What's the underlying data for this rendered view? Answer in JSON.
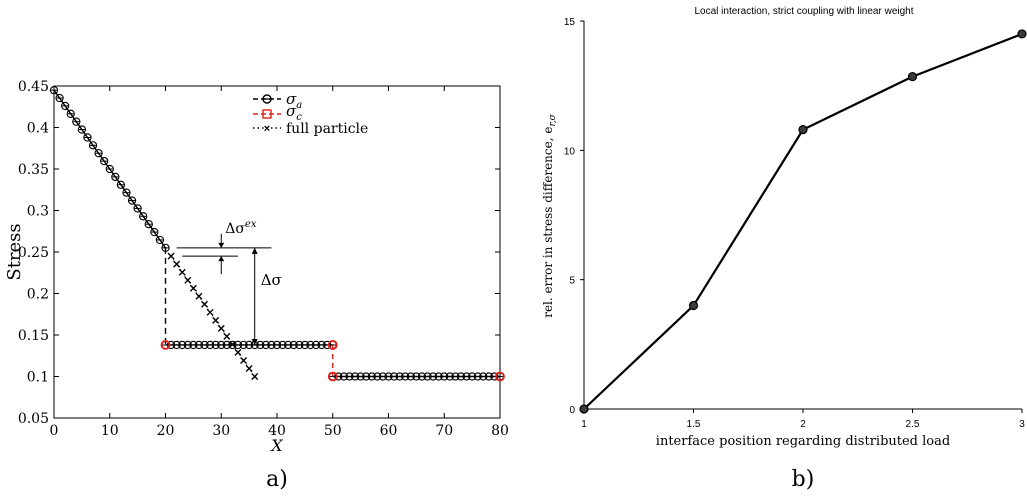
{
  "chart_data": [
    {
      "type": "line",
      "panel_label": "a)",
      "title": "",
      "xlabel": "X",
      "ylabel": "Stress",
      "xlim": [
        0,
        80
      ],
      "ylim": [
        0.05,
        0.45
      ],
      "x_ticks": [
        "0",
        "10",
        "20",
        "30",
        "40",
        "50",
        "60",
        "70",
        "80"
      ],
      "y_ticks": [
        "0.05",
        "0.1",
        "0.15",
        "0.2",
        "0.25",
        "0.3",
        "0.35",
        "0.4",
        "0.45"
      ],
      "legend_placement": "top-center",
      "grid": false,
      "series": [
        {
          "name": "σa",
          "legend_sub": "a",
          "color": "#000000",
          "marker": "circle-slash",
          "line": "dashed",
          "segments": [
            {
              "x_start": 0,
              "x_end": 20,
              "y_start": 0.445,
              "y_end": 0.255,
              "step": 1
            },
            {
              "x_start": 20,
              "x_end": 50,
              "y_start": 0.138,
              "y_end": 0.138,
              "step": 1
            },
            {
              "x_start": 50,
              "x_end": 80,
              "y_start": 0.1,
              "y_end": 0.1,
              "step": 1
            }
          ],
          "jumps": [
            [
              20,
              0.255,
              0.138
            ]
          ]
        },
        {
          "name": "σc",
          "legend_sub": "c",
          "color": "#e0201b",
          "marker": "square",
          "line": "dashed",
          "points": [
            [
              20,
              0.138
            ],
            [
              50,
              0.138
            ],
            [
              50,
              0.1
            ],
            [
              80,
              0.1
            ]
          ],
          "jumps": [
            [
              50,
              0.138,
              0.1
            ]
          ]
        },
        {
          "name": "full particle",
          "color": "#000000",
          "marker": "x",
          "line": "dotted",
          "segments": [
            {
              "x_start": 21,
              "x_end": 36,
              "y_start": 0.245,
              "y_end": 0.1,
              "step": 1
            }
          ]
        }
      ],
      "annotations": [
        {
          "label": "Δσ",
          "sup": "ex",
          "x": 30,
          "y_top": 0.255,
          "y_bottom": 0.245
        },
        {
          "label": "Δσ",
          "sup": "",
          "x": 36,
          "y_top": 0.255,
          "y_bottom": 0.138
        }
      ]
    },
    {
      "type": "line",
      "panel_label": "b)",
      "title": "Local interaction, strict coupling with linear weight",
      "xlabel": "interface position regarding distributed load",
      "ylabel": "rel. error in stress difference, e",
      "ylabel_sub": "r,σ",
      "xlim": [
        1,
        3
      ],
      "ylim": [
        0,
        15
      ],
      "x_ticks": [
        "1",
        "1.5",
        "2",
        "2.5",
        "3"
      ],
      "y_ticks": [
        "0",
        "5",
        "10",
        "15"
      ],
      "grid": false,
      "x": [
        1,
        1.5,
        2,
        2.5,
        3
      ],
      "values": [
        0,
        4.0,
        10.8,
        12.85,
        14.5
      ],
      "color": "#000000"
    }
  ]
}
